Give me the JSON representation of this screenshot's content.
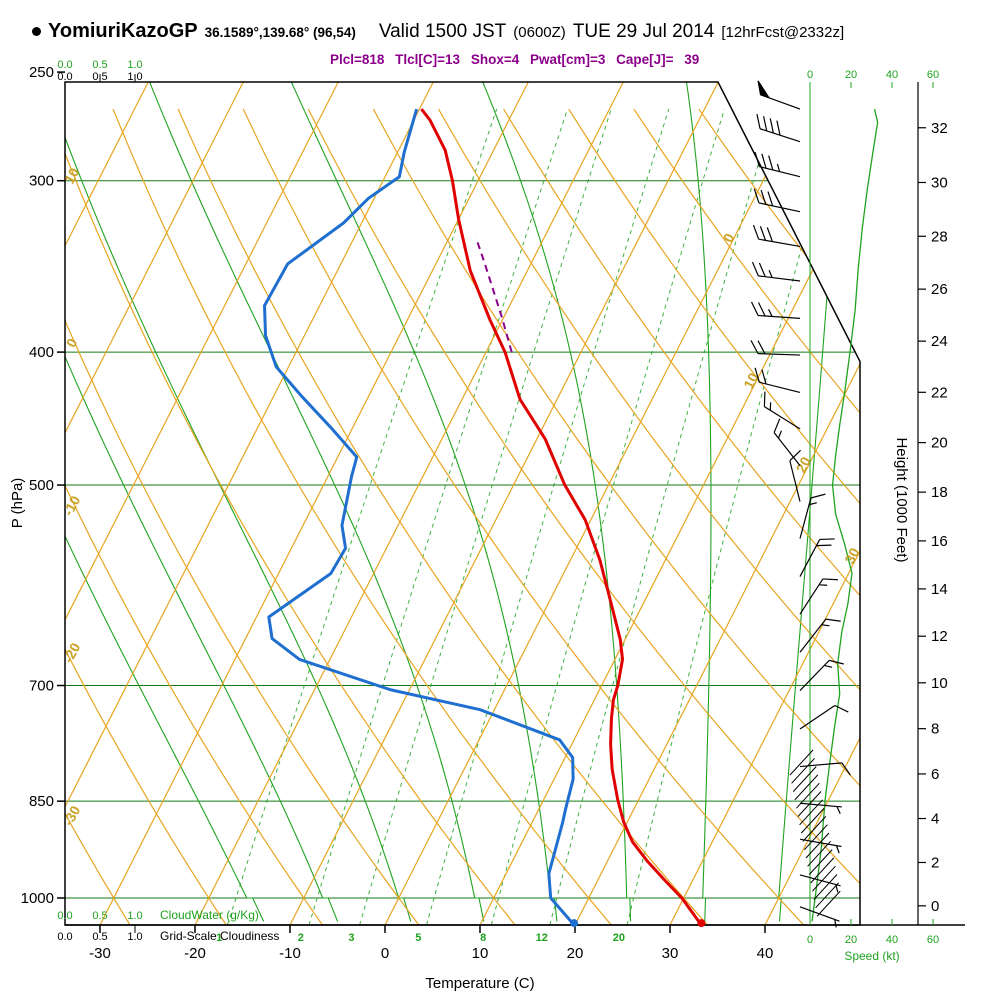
{
  "header": {
    "station": "YomiuriKazoGP",
    "coords": "36.1589°,139.68° (96,54)",
    "valid_time": "Valid 1500 JST",
    "valid_utc": "(0600Z)",
    "valid_date": "TUE 29 Jul 2014",
    "fcst": "[12hrFcst@2332z]",
    "params": "Plcl=818 Tlcl[C]=13 Shox=4 Pwat[cm]=3 Cape[J]= 39"
  },
  "colors": {
    "temperature": "#e00000",
    "dewpoint": "#1f6fd0",
    "parcel": "#8b008b",
    "orange": "#e8a520",
    "green": "#1fa31f",
    "pressure_line": "#157a15",
    "label_yellow": "#c9a227",
    "barbs": "#000000"
  },
  "chart_data": {
    "type": "line",
    "variant": "skew-T log-P thermodynamic sounding",
    "pressure_axis": {
      "label": "P (hPa)",
      "ticks": [
        250,
        300,
        400,
        500,
        700,
        850,
        1000
      ],
      "range": [
        254,
        1046
      ]
    },
    "temp_axis": {
      "label": "Temperature (C)",
      "ticks": [
        -30,
        -20,
        -10,
        0,
        10,
        20,
        30,
        40
      ]
    },
    "height_axis": {
      "label": "Height (1000 Feet)",
      "ticks": [
        0,
        2,
        4,
        6,
        8,
        10,
        12,
        14,
        16,
        18,
        20,
        22,
        24,
        26,
        28,
        30,
        32
      ]
    },
    "speed_axis": {
      "label": "Speed (kt)",
      "ticks": [
        0,
        20,
        40,
        60
      ]
    },
    "cloud_axes": {
      "ticks": [
        "0.0",
        "0.5",
        "1.0"
      ],
      "cloudwater_label": "CloudWater (g/Kg)",
      "cloudiness_label": "Grid-Scale Cloudiness"
    },
    "background": {
      "isotherm_step": 10,
      "isotherm_labels": [
        0,
        10,
        20,
        30
      ],
      "dry_adiabat_labels": [
        10,
        0,
        -10,
        -20,
        -30
      ],
      "dry_adiabats_thetaC": [
        -30,
        -20,
        -10,
        0,
        10,
        20,
        30,
        40,
        50,
        60,
        70,
        80,
        90,
        100,
        110
      ],
      "moist_adiabats_thetawC": [
        -16,
        -8,
        0,
        8,
        16,
        24,
        32,
        40
      ],
      "mixing_ratio_lines": [
        1,
        2,
        3,
        5,
        8,
        12,
        20
      ]
    },
    "temperature_profile": [
      [
        1045,
        33.2
      ],
      [
        1000,
        29.8
      ],
      [
        970,
        27.0
      ],
      [
        940,
        24.2
      ],
      [
        910,
        21.6
      ],
      [
        880,
        19.6
      ],
      [
        848,
        17.8
      ],
      [
        806,
        15.6
      ],
      [
        773,
        14.1
      ],
      [
        740,
        12.8
      ],
      [
        717,
        12.0
      ],
      [
        700,
        11.7
      ],
      [
        670,
        10.8
      ],
      [
        648,
        9.5
      ],
      [
        606,
        6.3
      ],
      [
        567,
        3.1
      ],
      [
        530,
        -0.6
      ],
      [
        500,
        -4.6
      ],
      [
        463,
        -9.1
      ],
      [
        433,
        -13.9
      ],
      [
        400,
        -18.0
      ],
      [
        379,
        -21.3
      ],
      [
        349,
        -26.0
      ],
      [
        320,
        -30.0
      ],
      [
        300,
        -32.7
      ],
      [
        285,
        -35.1
      ],
      [
        271,
        -38.3
      ],
      [
        266,
        -39.8
      ]
    ],
    "dewpoint_profile": [
      [
        1045,
        19.8
      ],
      [
        1000,
        16.0
      ],
      [
        960,
        14.5
      ],
      [
        922,
        13.9
      ],
      [
        880,
        13.2
      ],
      [
        861,
        12.8
      ],
      [
        819,
        12.0
      ],
      [
        790,
        10.8
      ],
      [
        767,
        8.5
      ],
      [
        729,
        -1.5
      ],
      [
        705,
        -12.0
      ],
      [
        670,
        -23.2
      ],
      [
        647,
        -27.2
      ],
      [
        624,
        -28.7
      ],
      [
        580,
        -24.5
      ],
      [
        556,
        -24.3
      ],
      [
        535,
        -25.9
      ],
      [
        493,
        -27.5
      ],
      [
        477,
        -28.0
      ],
      [
        454,
        -32.3
      ],
      [
        431,
        -37.0
      ],
      [
        410,
        -41.3
      ],
      [
        389,
        -44.1
      ],
      [
        370,
        -45.8
      ],
      [
        345,
        -45.6
      ],
      [
        322,
        -41.9
      ],
      [
        309,
        -40.6
      ],
      [
        298,
        -38.5
      ],
      [
        286,
        -39.3
      ],
      [
        266,
        -40.3
      ]
    ],
    "parcel_path": [
      [
        400,
        -17.3
      ],
      [
        378,
        -20.1
      ],
      [
        356,
        -23.2
      ],
      [
        340,
        -25.6
      ],
      [
        330,
        -27.2
      ]
    ],
    "surface": {
      "pressure": 1043,
      "temperature": 33.2,
      "dewpoint": 19.8
    },
    "wind_speed_profile": [
      [
        1040,
        1
      ],
      [
        1000,
        2.5
      ],
      [
        960,
        4
      ],
      [
        920,
        5.5
      ],
      [
        880,
        6.5
      ],
      [
        845,
        7.5
      ],
      [
        800,
        9.5
      ],
      [
        750,
        12
      ],
      [
        710,
        14.5
      ],
      [
        675,
        13.5
      ],
      [
        640,
        15.5
      ],
      [
        610,
        18.5
      ],
      [
        580,
        20.5
      ],
      [
        553,
        17
      ],
      [
        525,
        12.5
      ],
      [
        500,
        11
      ],
      [
        476,
        12.5
      ],
      [
        452,
        14.5
      ],
      [
        427,
        17
      ],
      [
        400,
        19.5
      ],
      [
        373,
        22
      ],
      [
        348,
        23.5
      ],
      [
        325,
        25.5
      ],
      [
        304,
        28
      ],
      [
        284,
        31
      ],
      [
        272,
        33
      ],
      [
        266,
        31.5
      ]
    ],
    "wind_barbs": [
      [
        266,
        50,
        290
      ],
      [
        281,
        40,
        288
      ],
      [
        298,
        35,
        284
      ],
      [
        316,
        30,
        282
      ],
      [
        335,
        28,
        280
      ],
      [
        355,
        25,
        277
      ],
      [
        378,
        23,
        274
      ],
      [
        402,
        20,
        272
      ],
      [
        428,
        18,
        284
      ],
      [
        455,
        15,
        302
      ],
      [
        484,
        13,
        322
      ],
      [
        514,
        12,
        346
      ],
      [
        547,
        15,
        15
      ],
      [
        583,
        20,
        28
      ],
      [
        621,
        17,
        33
      ],
      [
        662,
        15,
        38
      ],
      [
        706,
        14,
        44
      ],
      [
        753,
        11,
        56
      ],
      [
        802,
        9,
        85
      ],
      [
        853,
        7,
        95
      ],
      [
        906,
        5,
        100
      ],
      [
        962,
        4,
        105
      ],
      [
        1015,
        3,
        110
      ]
    ]
  }
}
